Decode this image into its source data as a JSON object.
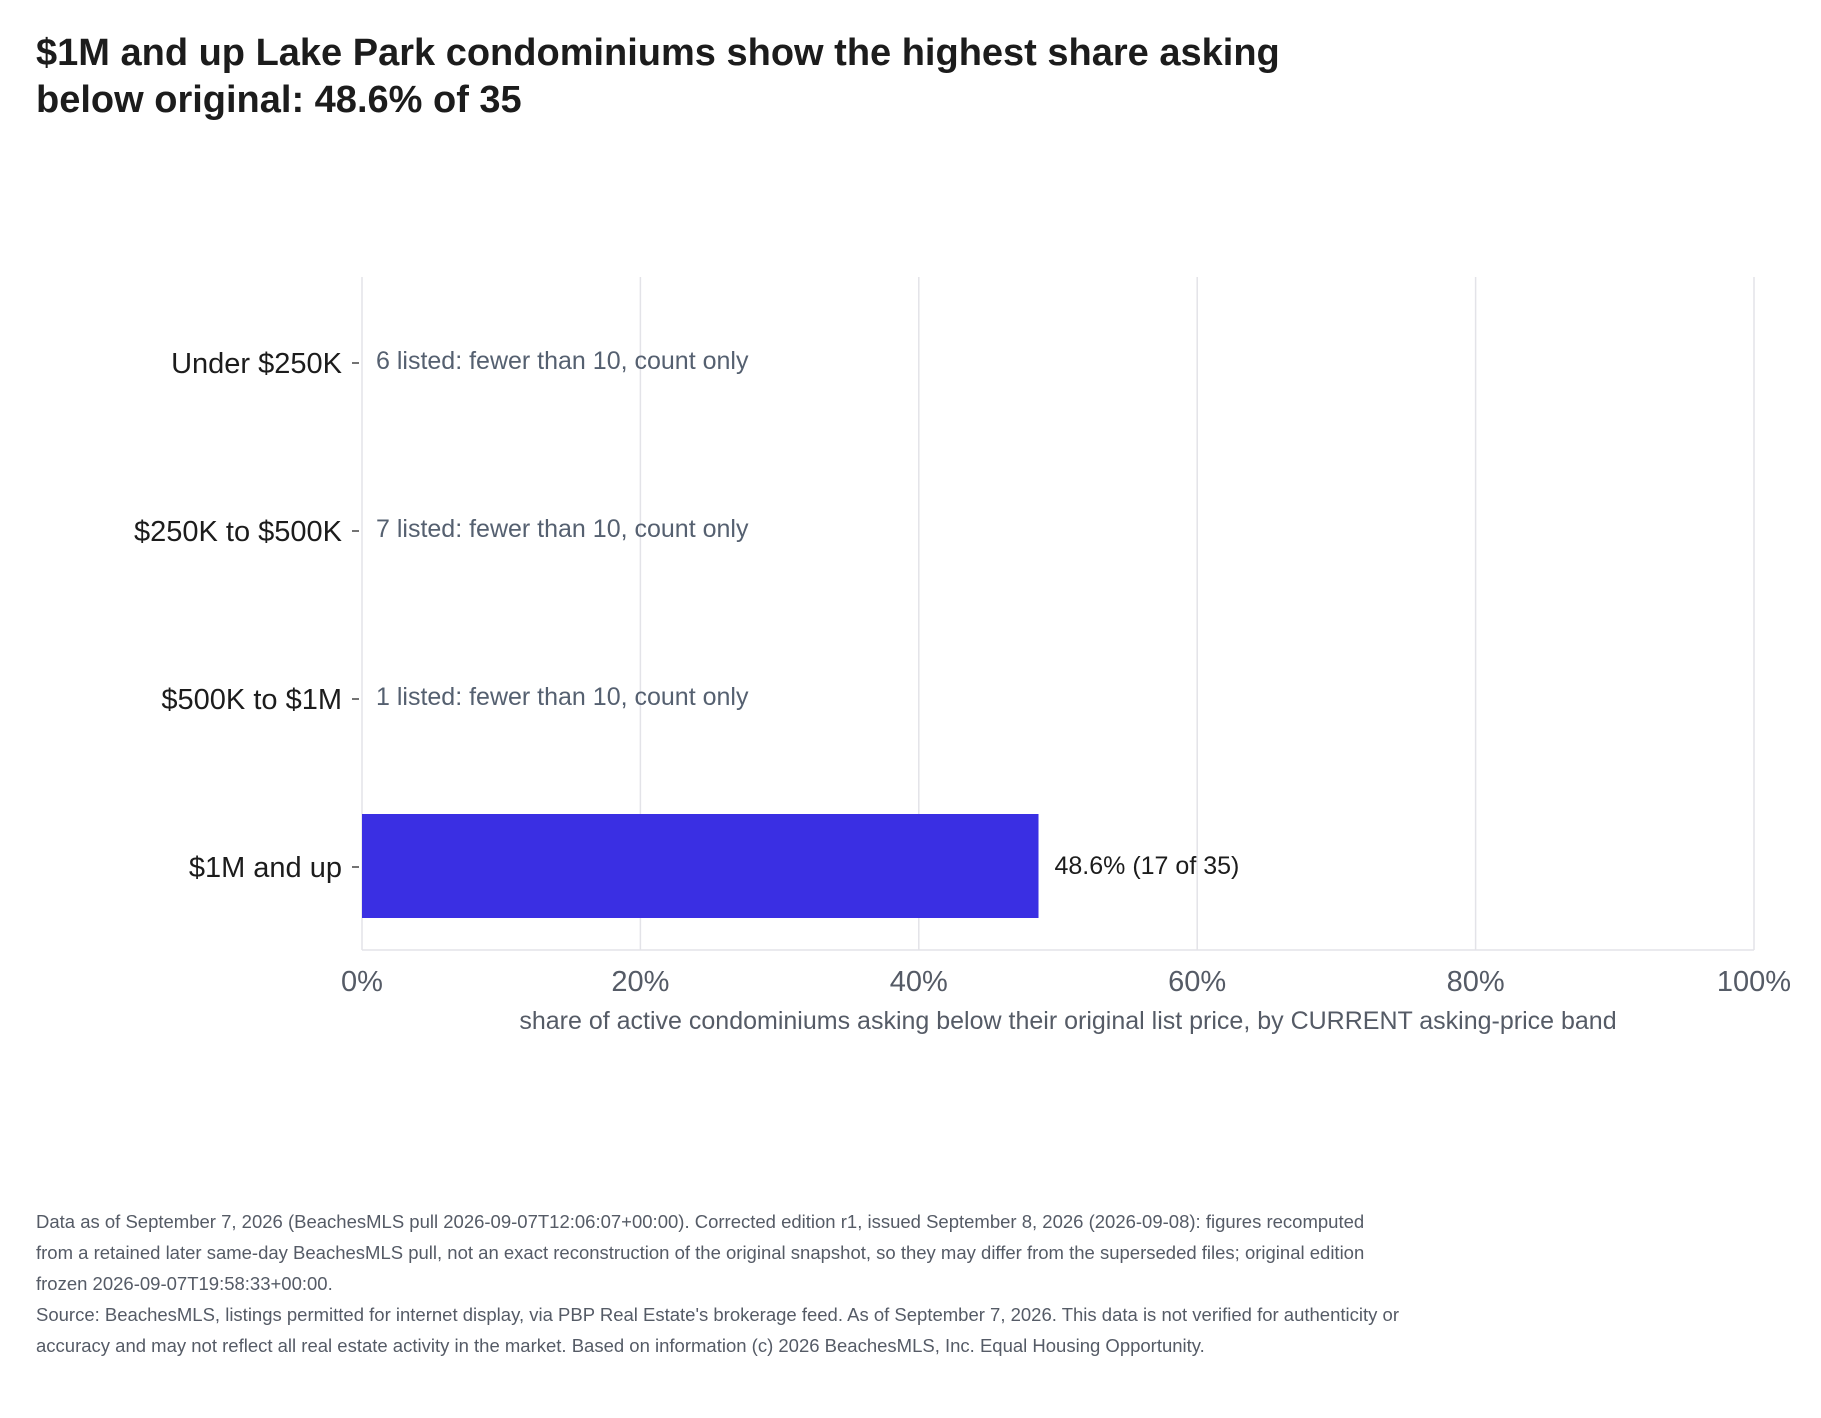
{
  "title": "$1M and up Lake Park condominiums show the highest share asking below original: 48.6% of 35",
  "chart_data": {
    "type": "bar",
    "orientation": "horizontal",
    "categories": [
      "Under $250K",
      "$250K to $500K",
      "$500K to $1M",
      "$1M and up"
    ],
    "values": [
      null,
      null,
      null,
      48.6
    ],
    "bar_labels": [
      "6 listed: fewer than 10, count only",
      "7 listed: fewer than 10, count only",
      "1 listed: fewer than 10, count only",
      "48.6%  (17 of 35)"
    ],
    "xlabel": "share of active condominiums asking below their original list price, by CURRENT asking-price band",
    "ylabel": "",
    "xlim": [
      0,
      100
    ],
    "xticks": [
      0,
      20,
      40,
      60,
      80,
      100
    ],
    "xtick_labels": [
      "0%",
      "20%",
      "40%",
      "60%",
      "80%",
      "100%"
    ],
    "grid": true,
    "bar_color": "#3a2fe3",
    "note_color": "#556070"
  },
  "footnote": {
    "edition": "Data as of September 7, 2026 (BeachesMLS pull 2026-09-07T12:06:07+00:00). Corrected edition r1, issued September 8, 2026 (2026-09-08): figures recomputed from a retained later same-day BeachesMLS pull, not an exact reconstruction of the original snapshot, so they may differ from the superseded files; original edition frozen 2026-09-07T19:58:33+00:00.",
    "source": "Source: BeachesMLS, listings permitted for internet display, via PBP Real Estate's brokerage feed. As of September 7, 2026. This data is not verified for authenticity or accuracy and may not reflect all real estate activity in the market. Based on information (c) 2026 BeachesMLS, Inc. Equal Housing Opportunity."
  }
}
